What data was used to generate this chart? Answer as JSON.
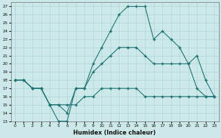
{
  "title": "",
  "xlabel": "Humidex (Indice chaleur)",
  "xlim": [
    -0.5,
    23.5
  ],
  "ylim": [
    13,
    27.5
  ],
  "yticks": [
    13,
    14,
    15,
    16,
    17,
    18,
    19,
    20,
    21,
    22,
    23,
    24,
    25,
    26,
    27
  ],
  "xticks": [
    0,
    1,
    2,
    3,
    4,
    5,
    6,
    7,
    8,
    9,
    10,
    11,
    12,
    13,
    14,
    15,
    16,
    17,
    18,
    19,
    20,
    21,
    22,
    23
  ],
  "bg_color": "#cce8e8",
  "grid_color": "#b0d8d8",
  "line_color": "#1a7070",
  "line1_x": [
    0,
    1,
    2,
    3,
    4,
    5,
    6,
    7,
    8,
    9,
    10,
    11,
    12,
    13,
    14,
    15,
    16,
    17,
    18,
    19,
    20,
    21,
    22,
    23
  ],
  "line1_y": [
    18,
    18,
    17,
    17,
    15,
    13,
    13,
    17,
    17,
    20,
    22,
    24,
    26,
    27,
    27,
    27,
    23,
    24,
    23,
    22,
    20,
    17,
    16,
    16
  ],
  "line2_x": [
    0,
    1,
    2,
    3,
    4,
    5,
    6,
    7,
    8,
    9,
    10,
    11,
    12,
    13,
    14,
    15,
    16,
    17,
    18,
    19,
    20,
    21,
    22,
    23
  ],
  "line2_y": [
    18,
    18,
    17,
    17,
    15,
    15,
    14,
    17,
    17,
    19,
    20,
    21,
    22,
    22,
    22,
    21,
    20,
    20,
    20,
    20,
    20,
    21,
    18,
    16
  ],
  "line3_x": [
    0,
    1,
    2,
    3,
    4,
    5,
    6,
    7,
    8,
    9,
    10,
    11,
    12,
    13,
    14,
    15,
    16,
    17,
    18,
    19,
    20,
    21,
    22,
    23
  ],
  "line3_y": [
    18,
    18,
    17,
    17,
    15,
    15,
    15,
    15,
    16,
    16,
    17,
    17,
    17,
    17,
    17,
    16,
    16,
    16,
    16,
    16,
    16,
    16,
    16,
    16
  ]
}
